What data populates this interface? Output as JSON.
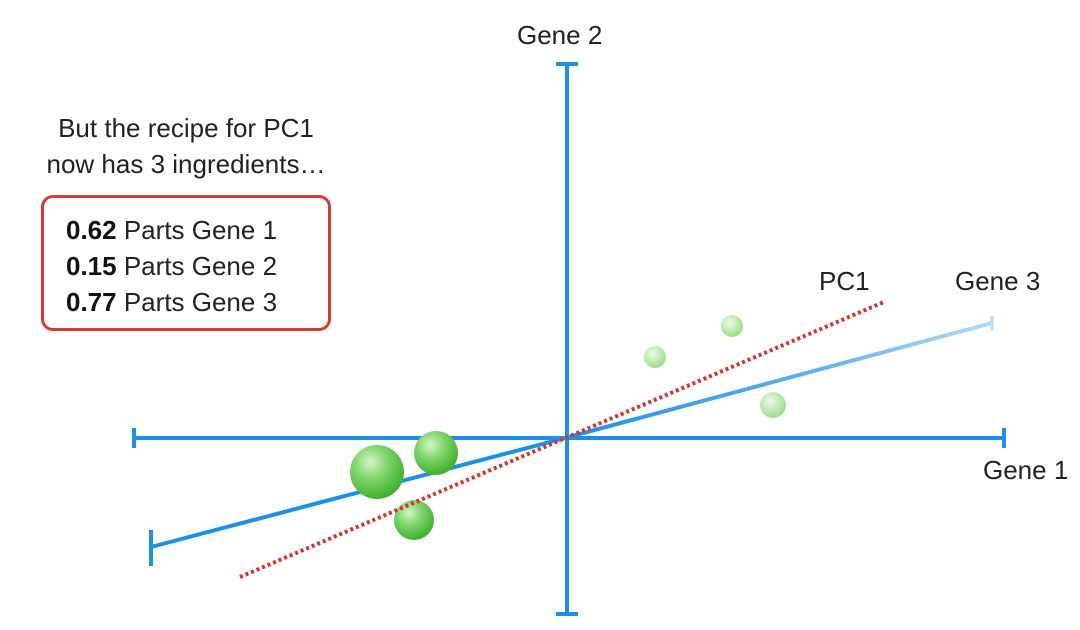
{
  "caption": {
    "line1": "But the recipe for PC1",
    "line2": "now has 3 ingredients…"
  },
  "recipe": [
    {
      "weight": "0.62",
      "text": "Parts Gene 1"
    },
    {
      "weight": "0.15",
      "text": "Parts Gene 2"
    },
    {
      "weight": "0.77",
      "text": "Parts Gene 3"
    }
  ],
  "axes": {
    "gene1": "Gene 1",
    "gene2": "Gene 2",
    "gene3": "Gene 3",
    "pc1": "PC1"
  },
  "colors": {
    "axis": "#1e8fe6",
    "pc1": "#d6312b",
    "box_border": "#d63a32",
    "point": "#5cc646"
  }
}
